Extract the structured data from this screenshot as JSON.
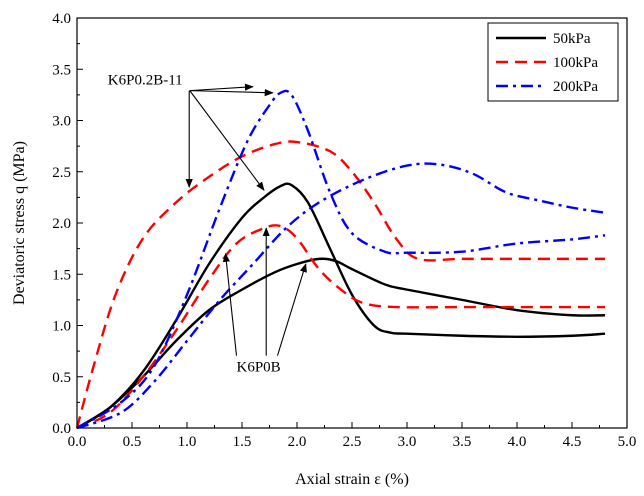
{
  "chart_data": {
    "type": "line",
    "xlabel": "Axial strain ε (%)",
    "ylabel": "Deviatoric stress q (MPa)",
    "xlim": [
      0,
      5.0
    ],
    "ylim": [
      0,
      4.0
    ],
    "xticks": [
      "0.0",
      "0.5",
      "1.0",
      "1.5",
      "2.0",
      "2.5",
      "3.0",
      "3.5",
      "4.0",
      "4.5",
      "5.0"
    ],
    "yticks": [
      "0.0",
      "0.5",
      "1.0",
      "1.5",
      "2.0",
      "2.5",
      "3.0",
      "3.5",
      "4.0"
    ],
    "grid": false,
    "legend_position": "top-right",
    "legend": [
      {
        "label": "50kPa",
        "color": "#000000",
        "dash": "solid"
      },
      {
        "label": "100kPa",
        "color": "#ff0000",
        "dash": "dashed"
      },
      {
        "label": "200kPa",
        "color": "#0000ff",
        "dash": "dash-dot"
      }
    ],
    "series": [
      {
        "name": "50kPa",
        "group": "K6P0.2B-11",
        "color": "#000000",
        "dash": "solid",
        "x": [
          0,
          0.3,
          0.6,
          0.9,
          1.2,
          1.5,
          1.7,
          1.85,
          1.95,
          2.1,
          2.3,
          2.5,
          2.7,
          2.85,
          3.0,
          3.5,
          4.0,
          4.5,
          4.8
        ],
        "y": [
          0,
          0.2,
          0.55,
          1.05,
          1.6,
          2.05,
          2.25,
          2.36,
          2.37,
          2.2,
          1.75,
          1.3,
          1.0,
          0.93,
          0.92,
          0.9,
          0.89,
          0.9,
          0.92
        ]
      },
      {
        "name": "50kPa",
        "group": "K6P0B",
        "color": "#000000",
        "dash": "solid",
        "x": [
          0,
          0.3,
          0.6,
          0.9,
          1.2,
          1.5,
          1.8,
          2.0,
          2.2,
          2.35,
          2.5,
          2.8,
          3.0,
          3.5,
          4.0,
          4.5,
          4.8
        ],
        "y": [
          0,
          0.2,
          0.5,
          0.85,
          1.15,
          1.35,
          1.52,
          1.6,
          1.65,
          1.63,
          1.55,
          1.4,
          1.35,
          1.25,
          1.15,
          1.1,
          1.1
        ]
      },
      {
        "name": "100kPa",
        "group": "K6P0.2B-11",
        "color": "#ff0000",
        "dash": "dashed",
        "x": [
          0,
          0.15,
          0.35,
          0.6,
          0.9,
          1.2,
          1.5,
          1.8,
          2.0,
          2.3,
          2.5,
          2.7,
          2.9,
          3.1,
          3.5,
          4.0,
          4.5,
          4.8
        ],
        "y": [
          0,
          0.6,
          1.3,
          1.85,
          2.2,
          2.45,
          2.65,
          2.77,
          2.79,
          2.7,
          2.5,
          2.2,
          1.85,
          1.65,
          1.65,
          1.65,
          1.65,
          1.65
        ]
      },
      {
        "name": "100kPa",
        "group": "K6P0B",
        "color": "#ff0000",
        "dash": "dashed",
        "x": [
          0,
          0.3,
          0.6,
          0.9,
          1.2,
          1.45,
          1.7,
          1.85,
          2.0,
          2.2,
          2.4,
          2.6,
          2.9,
          3.5,
          4.0,
          4.5,
          4.8
        ],
        "y": [
          0,
          0.15,
          0.5,
          0.95,
          1.45,
          1.8,
          1.95,
          1.97,
          1.85,
          1.55,
          1.35,
          1.22,
          1.18,
          1.18,
          1.18,
          1.18,
          1.18
        ]
      },
      {
        "name": "200kPa",
        "group": "K6P0.2B-11",
        "color": "#0000ff",
        "dash": "dash-dot",
        "x": [
          0,
          0.4,
          0.7,
          1.0,
          1.3,
          1.55,
          1.75,
          1.85,
          1.95,
          2.1,
          2.3,
          2.5,
          2.8,
          3.0,
          3.5,
          4.0,
          4.5,
          4.8
        ],
        "y": [
          0,
          0.25,
          0.6,
          1.3,
          2.15,
          2.8,
          3.15,
          3.27,
          3.25,
          2.9,
          2.3,
          1.9,
          1.72,
          1.71,
          1.72,
          1.8,
          1.84,
          1.88
        ]
      },
      {
        "name": "200kPa",
        "group": "K6P0B",
        "color": "#0000ff",
        "dash": "dash-dot",
        "x": [
          0,
          0.4,
          0.7,
          1.0,
          1.3,
          1.6,
          1.9,
          2.2,
          2.6,
          3.0,
          3.3,
          3.6,
          3.9,
          4.2,
          4.5,
          4.8
        ],
        "y": [
          0,
          0.15,
          0.45,
          0.85,
          1.25,
          1.6,
          1.95,
          2.2,
          2.42,
          2.56,
          2.57,
          2.48,
          2.3,
          2.22,
          2.15,
          2.1
        ]
      }
    ],
    "annotations": [
      {
        "text": "K6P0.2B-11",
        "text_at": [
          0.28,
          3.35
        ],
        "arrows_to": [
          [
            1.02,
            2.35
          ],
          [
            1.7,
            2.32
          ],
          [
            1.78,
            3.27
          ],
          [
            1.6,
            3.33
          ]
        ]
      },
      {
        "text": "K6P0B",
        "text_at": [
          1.45,
          0.55
        ],
        "arrows_to": [
          [
            1.35,
            1.7
          ],
          [
            1.72,
            1.95
          ],
          [
            2.08,
            1.6
          ]
        ]
      }
    ]
  }
}
